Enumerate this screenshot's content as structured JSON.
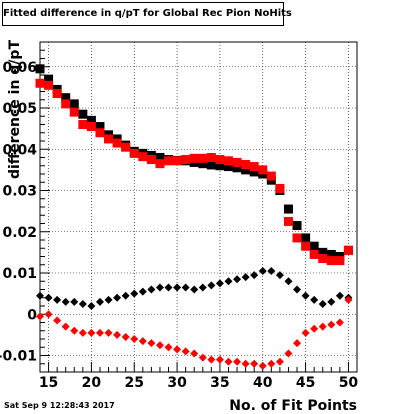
{
  "title": "Fitted difference in q/pT for Global Rec Pion NoHits",
  "timestamp": "Sat Sep  9 12:28:43 2017",
  "chart_data": {
    "type": "scatter",
    "title": "Fitted difference in q/pT for Global Rec Pion NoHits",
    "xlabel": "No. of Fit Points",
    "ylabel": "difference in q/pT",
    "xlim": [
      14,
      51
    ],
    "ylim": [
      -0.014,
      0.066
    ],
    "x_ticks": [
      15,
      20,
      25,
      30,
      35,
      40,
      45,
      50
    ],
    "y_ticks": [
      -0.01,
      0,
      0.01,
      0.02,
      0.03,
      0.04,
      0.05,
      0.06
    ],
    "y_tick_labels": [
      "-0.01",
      "0",
      "0.01",
      "0.02",
      "0.03",
      "0.04",
      "0.05",
      "0.06"
    ],
    "grid": true,
    "series": [
      {
        "marker": "square",
        "color": "#000000",
        "x": [
          14,
          15,
          16,
          17,
          18,
          19,
          20,
          21,
          22,
          23,
          24,
          25,
          26,
          27,
          28,
          29,
          30,
          31,
          32,
          33,
          34,
          35,
          36,
          37,
          38,
          39,
          40,
          41,
          42,
          43,
          44,
          45,
          46,
          47,
          48,
          49,
          50
        ],
        "y": [
          0.0595,
          0.057,
          0.0545,
          0.0525,
          0.051,
          0.0485,
          0.047,
          0.0455,
          0.0435,
          0.0425,
          0.041,
          0.0395,
          0.039,
          0.0385,
          0.038,
          0.0375,
          0.0373,
          0.0372,
          0.0368,
          0.0365,
          0.0362,
          0.036,
          0.0358,
          0.0355,
          0.035,
          0.0345,
          0.034,
          0.0325,
          0.03,
          0.0255,
          0.0215,
          0.0185,
          0.0165,
          0.015,
          0.0145,
          0.014,
          0.0155
        ]
      },
      {
        "marker": "square",
        "color": "#ff0000",
        "x": [
          14,
          15,
          16,
          17,
          18,
          19,
          20,
          21,
          22,
          23,
          24,
          25,
          26,
          27,
          28,
          29,
          30,
          31,
          32,
          33,
          34,
          35,
          36,
          37,
          38,
          39,
          40,
          41,
          42,
          43,
          44,
          45,
          46,
          47,
          48,
          49,
          50
        ],
        "y": [
          0.056,
          0.0555,
          0.0535,
          0.051,
          0.049,
          0.046,
          0.0455,
          0.044,
          0.0425,
          0.0415,
          0.0405,
          0.039,
          0.0382,
          0.0375,
          0.0365,
          0.0372,
          0.0372,
          0.0375,
          0.0378,
          0.0378,
          0.038,
          0.0375,
          0.0372,
          0.0368,
          0.0363,
          0.0358,
          0.035,
          0.0335,
          0.0305,
          0.0225,
          0.0185,
          0.0165,
          0.0145,
          0.0135,
          0.013,
          0.013,
          0.0155
        ]
      },
      {
        "marker": "diamond",
        "color": "#000000",
        "x": [
          14,
          15,
          16,
          17,
          18,
          19,
          20,
          21,
          22,
          23,
          24,
          25,
          26,
          27,
          28,
          29,
          30,
          31,
          32,
          33,
          34,
          35,
          36,
          37,
          38,
          39,
          40,
          41,
          42,
          43,
          44,
          45,
          46,
          47,
          48,
          49,
          50
        ],
        "y": [
          0.0045,
          0.004,
          0.0035,
          0.003,
          0.003,
          0.0025,
          0.002,
          0.003,
          0.0035,
          0.004,
          0.0045,
          0.005,
          0.0055,
          0.006,
          0.0065,
          0.0065,
          0.0065,
          0.0065,
          0.006,
          0.0065,
          0.007,
          0.0075,
          0.008,
          0.0085,
          0.009,
          0.0095,
          0.0105,
          0.0105,
          0.0095,
          0.008,
          0.006,
          0.0045,
          0.0035,
          0.0025,
          0.003,
          0.0045,
          0.004
        ]
      },
      {
        "marker": "diamond",
        "color": "#ff0000",
        "x": [
          14,
          15,
          16,
          17,
          18,
          19,
          20,
          21,
          22,
          23,
          24,
          25,
          26,
          27,
          28,
          29,
          30,
          31,
          32,
          33,
          34,
          35,
          36,
          37,
          38,
          39,
          40,
          41,
          42,
          43,
          44,
          45,
          46,
          47,
          48,
          49,
          50
        ],
        "y": [
          -0.0005,
          0.0,
          -0.0015,
          -0.003,
          -0.004,
          -0.0045,
          -0.0045,
          -0.0045,
          -0.0045,
          -0.005,
          -0.0055,
          -0.006,
          -0.0065,
          -0.007,
          -0.0075,
          -0.008,
          -0.0085,
          -0.009,
          -0.0095,
          -0.0105,
          -0.011,
          -0.011,
          -0.0115,
          -0.0115,
          -0.012,
          -0.012,
          -0.0125,
          -0.012,
          -0.0115,
          -0.0095,
          -0.007,
          -0.0045,
          -0.0035,
          -0.003,
          -0.0025,
          -0.002,
          0.0035
        ]
      }
    ]
  }
}
